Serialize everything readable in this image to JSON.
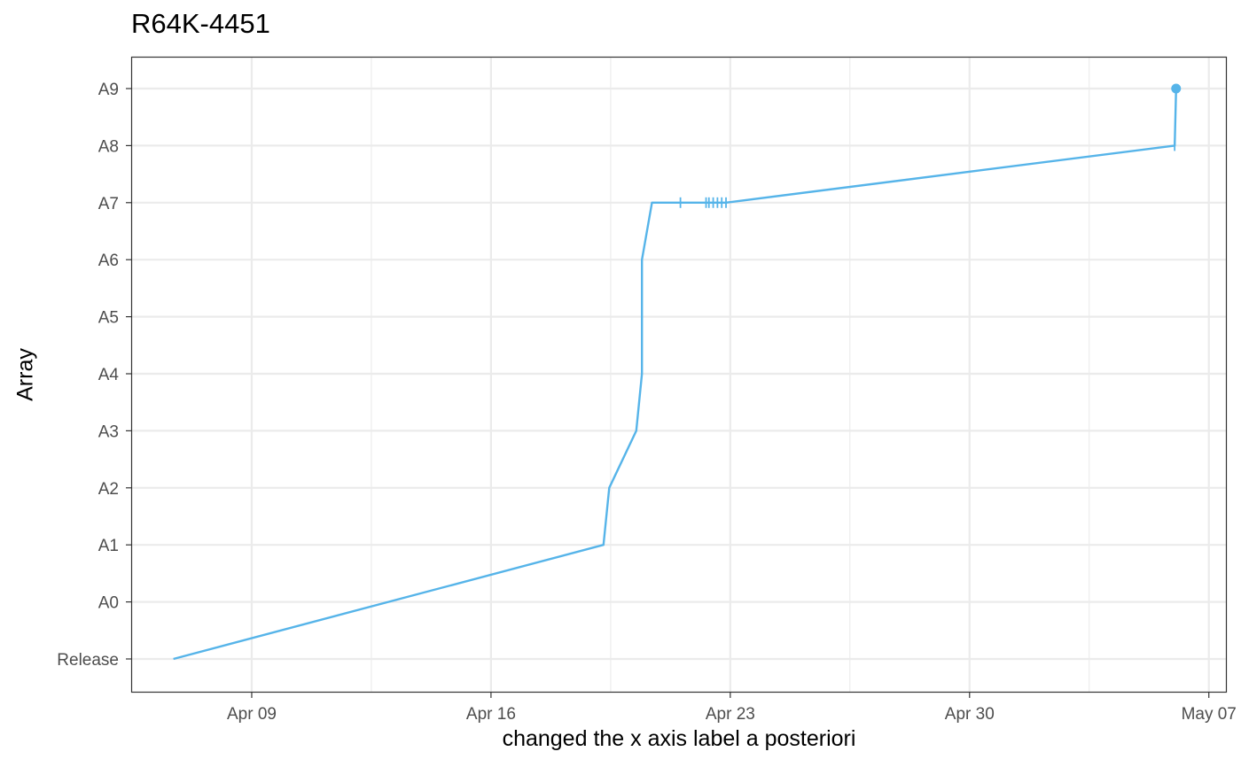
{
  "chart_data": {
    "type": "line",
    "title": "R64K-4451",
    "xlabel": "changed the x axis label a posteriori",
    "ylabel": "Array",
    "x_ticks": [
      "Apr 09",
      "Apr 16",
      "Apr 23",
      "Apr 30",
      "May 07"
    ],
    "x_tick_dates": [
      "2024-04-09",
      "2024-04-16",
      "2024-04-23",
      "2024-04-30",
      "2024-05-07"
    ],
    "xlim": [
      "2024-04-05T12:00",
      "2024-05-07T12:00"
    ],
    "categories": [
      "Release",
      "A0",
      "A1",
      "A2",
      "A3",
      "A4",
      "A5",
      "A6",
      "A7",
      "A8",
      "A9"
    ],
    "grid": true,
    "color": "#56B4E9",
    "series": [
      {
        "points": [
          {
            "x": "2024-04-06T17:00",
            "y": "Release"
          },
          {
            "x": "2024-04-19T07:00",
            "y": "A1"
          },
          {
            "x": "2024-04-19T11:00",
            "y": "A2"
          },
          {
            "x": "2024-04-20T06:00",
            "y": "A3"
          },
          {
            "x": "2024-04-20T10:00",
            "y": "A4"
          },
          {
            "x": "2024-04-20T10:00",
            "y": "A6"
          },
          {
            "x": "2024-04-20T17:00",
            "y": "A7"
          },
          {
            "x": "2024-04-21T13:00",
            "y": "A7"
          },
          {
            "x": "2024-04-22T07:00",
            "y": "A7"
          },
          {
            "x": "2024-04-22T09:00",
            "y": "A7"
          },
          {
            "x": "2024-04-22T12:00",
            "y": "A7"
          },
          {
            "x": "2024-04-22T15:00",
            "y": "A7"
          },
          {
            "x": "2024-04-22T18:00",
            "y": "A7"
          },
          {
            "x": "2024-04-22T21:00",
            "y": "A7"
          },
          {
            "x": "2024-05-06T00:00",
            "y": "A8"
          },
          {
            "x": "2024-05-06T01:00",
            "y": "A9"
          }
        ],
        "tick_marks": [
          "2024-04-21T13:00",
          "2024-04-22T07:00",
          "2024-04-22T09:00",
          "2024-04-22T12:00",
          "2024-04-22T15:00",
          "2024-04-22T18:00",
          "2024-04-22T21:00",
          "2024-05-06T00:00"
        ],
        "end_point": {
          "x": "2024-05-06T01:00",
          "y": "A9"
        }
      }
    ]
  }
}
